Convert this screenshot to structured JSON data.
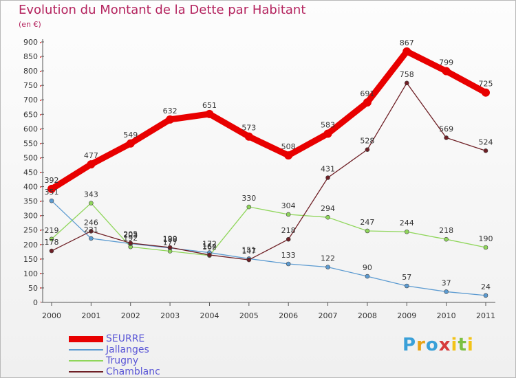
{
  "header": {
    "title": "Evolution du Montant de la Dette par Habitant",
    "unit": "(en €)"
  },
  "logo": {
    "letters": [
      "P",
      "r",
      "o",
      "x",
      "i",
      "t",
      "i"
    ],
    "colors": [
      "#3aa0d8",
      "#e8a317",
      "#3aa0d8",
      "#d63a3a",
      "#f2c318",
      "#7bc043",
      "#f2c318"
    ]
  },
  "chart_data": {
    "type": "line",
    "title": "Evolution du Montant de la Dette par Habitant",
    "ylabel": "(en €)",
    "x": [
      "2000",
      "2001",
      "2002",
      "2003",
      "2004",
      "2005",
      "2006",
      "2007",
      "2008",
      "2009",
      "2010",
      "2011"
    ],
    "ylim": [
      0,
      900
    ],
    "yticks": [
      0,
      50,
      100,
      150,
      200,
      250,
      300,
      350,
      400,
      450,
      500,
      550,
      600,
      650,
      700,
      750,
      800,
      850,
      900
    ],
    "grid": false,
    "legend_position": "bottom-left",
    "series": [
      {
        "name": "SEURRE",
        "color": "#e80000",
        "values": [
          392,
          477,
          549,
          632,
          651,
          573,
          508,
          583,
          691,
          867,
          799,
          725
        ]
      },
      {
        "name": "Jallanges",
        "color": "#5c9bd1",
        "values": [
          351,
          221,
          203,
          188,
          172,
          151,
          133,
          122,
          90,
          57,
          37,
          24
        ]
      },
      {
        "name": "Trugny",
        "color": "#8fd65a",
        "values": [
          219,
          343,
          192,
          177,
          162,
          330,
          304,
          294,
          247,
          244,
          218,
          190
        ]
      },
      {
        "name": "Chamblanc",
        "color": "#6e1f25",
        "values": [
          178,
          246,
          205,
          190,
          164,
          147,
          218,
          431,
          528,
          758,
          569,
          524
        ]
      }
    ]
  }
}
